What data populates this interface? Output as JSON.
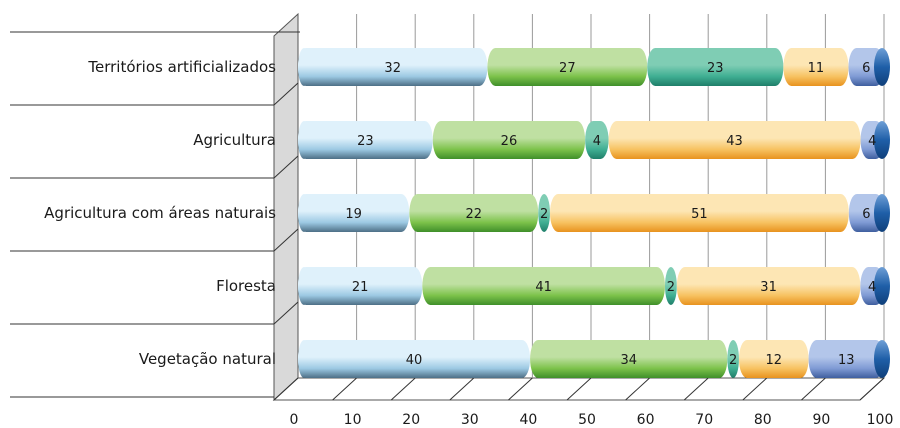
{
  "chart_data": {
    "type": "bar",
    "orientation": "horizontal",
    "stacked": true,
    "categories": [
      "Territórios artificializados",
      "Agricultura",
      "Agricultura com áreas naturais",
      "Floresta",
      "Vegetação natural"
    ],
    "series": [
      {
        "values": [
          32,
          23,
          19,
          21,
          40
        ]
      },
      {
        "values": [
          27,
          26,
          22,
          41,
          34
        ]
      },
      {
        "values": [
          23,
          4,
          2,
          2,
          2
        ]
      },
      {
        "values": [
          11,
          43,
          51,
          31,
          12
        ]
      },
      {
        "values": [
          6,
          4,
          6,
          4,
          13
        ]
      }
    ],
    "xlim": [
      0,
      100
    ],
    "xticks": [
      0,
      10,
      20,
      30,
      40,
      50,
      60,
      70,
      80,
      90,
      100
    ],
    "grid": true,
    "colors": {
      "series_light": [
        "#dff1fb",
        "#bfe0a2",
        "#7fcdb4",
        "#fde6b4",
        "#b3c6ea"
      ],
      "series_mid": [
        "#9cc9e3",
        "#7cc24a",
        "#3fae92",
        "#f7c261",
        "#7f9ad4"
      ],
      "series_dark": [
        "#4d6f86",
        "#3f8f2a",
        "#1f7f6a",
        "#e8931e",
        "#3f5f9f"
      ],
      "end_cap": "#1f5fa8",
      "grid": "#9a9a9a",
      "wall": "#d9d9d9"
    }
  }
}
